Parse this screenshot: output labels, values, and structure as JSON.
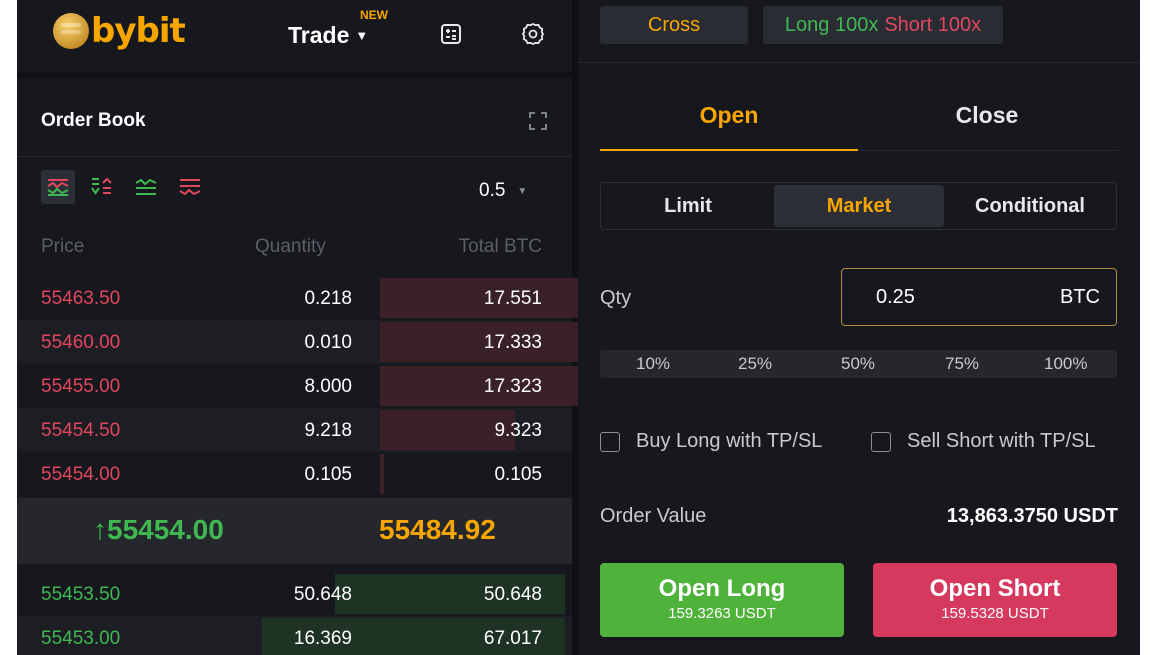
{
  "header": {
    "logo_text": "bybit",
    "trade_label": "Trade",
    "new_badge": "NEW",
    "icons": [
      "calculator-icon",
      "gear-icon"
    ]
  },
  "order_book": {
    "title": "Order Book",
    "precision": "0.5",
    "columns": {
      "price": "Price",
      "quantity": "Quantity",
      "total": "Total BTC"
    },
    "asks": [
      {
        "price": "55463.50",
        "quantity": "0.218",
        "total": "17.551",
        "depth": 0.7
      },
      {
        "price": "55460.00",
        "quantity": "0.010",
        "total": "17.333",
        "depth": 0.69
      },
      {
        "price": "55455.00",
        "quantity": "8.000",
        "total": "17.323",
        "depth": 0.69
      },
      {
        "price": "55454.50",
        "quantity": "9.218",
        "total": "9.323",
        "depth": 0.37
      },
      {
        "price": "55454.00",
        "quantity": "0.105",
        "total": "0.105",
        "depth": 0.01
      }
    ],
    "last_price": "↑55454.00",
    "mark_price": "55484.92",
    "bids": [
      {
        "price": "55453.50",
        "quantity": "50.648",
        "total": "50.648",
        "depth": 0.63
      },
      {
        "price": "55453.00",
        "quantity": "16.369",
        "total": "67.017",
        "depth": 0.83
      }
    ]
  },
  "trade_panel": {
    "margin_mode": "Cross",
    "leverage_long": "Long 100x",
    "leverage_short": "Short 100x",
    "tabs": {
      "open": "Open",
      "close": "Close"
    },
    "order_types": {
      "limit": "Limit",
      "market": "Market",
      "conditional": "Conditional"
    },
    "qty_label": "Qty",
    "qty_value": "0.25",
    "qty_unit": "BTC",
    "percents": [
      "10%",
      "25%",
      "50%",
      "75%",
      "100%"
    ],
    "tpsl_long": "Buy Long with TP/SL",
    "tpsl_short": "Sell Short with TP/SL",
    "order_value_label": "Order Value",
    "order_value": "13,863.3750 USDT",
    "open_long": {
      "label": "Open Long",
      "cost": "159.3263 USDT"
    },
    "open_short": {
      "label": "Open Short",
      "cost": "159.5328 USDT"
    }
  },
  "colors": {
    "accent": "#f7a600",
    "buy": "#3fb852",
    "sell": "#e0465e",
    "long_button": "#4fb23b",
    "short_button": "#d6395e"
  }
}
